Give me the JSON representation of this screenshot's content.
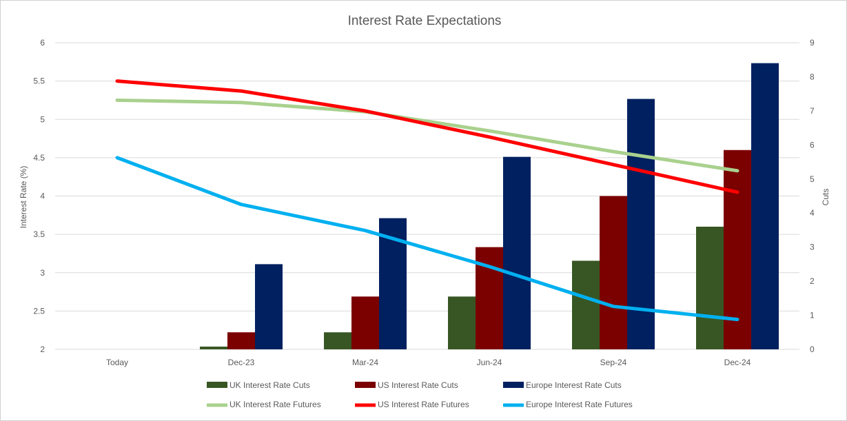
{
  "chart_data": {
    "type": "bar",
    "title": "Interest Rate Expectations",
    "categories": [
      "Today",
      "Dec-23",
      "Mar-24",
      "Jun-24",
      "Sep-24",
      "Dec-24"
    ],
    "y_left": {
      "label": "Interest Rate (%)",
      "range": [
        2,
        6
      ],
      "ticks": [
        "2",
        "2.5",
        "3",
        "3.5",
        "4",
        "4.5",
        "5",
        "5.5",
        "6"
      ]
    },
    "y_right": {
      "label": "Cuts",
      "range": [
        0,
        9
      ],
      "ticks": [
        "0",
        "1",
        "2",
        "3",
        "4",
        "5",
        "6",
        "7",
        "8",
        "9"
      ]
    },
    "grid": true,
    "legend_position": "bottom",
    "bar_series": [
      {
        "name": "UK Interest Rate Cuts",
        "color": "#375623",
        "axis": "right",
        "values": [
          0,
          0.08,
          0.5,
          1.55,
          2.6,
          3.6
        ]
      },
      {
        "name": "US Interest Rate Cuts",
        "color": "#7b0000",
        "axis": "right",
        "values": [
          0,
          0.5,
          1.55,
          3.0,
          4.5,
          5.85
        ]
      },
      {
        "name": "Europe Interest Rate Cuts",
        "color": "#002060",
        "axis": "right",
        "values": [
          0,
          2.5,
          3.85,
          5.65,
          7.35,
          8.4
        ]
      }
    ],
    "line_series": [
      {
        "name": "UK Interest Rate Futures",
        "color": "#a9d18e",
        "axis": "left",
        "values": [
          5.25,
          5.22,
          5.1,
          4.85,
          4.58,
          4.33
        ]
      },
      {
        "name": "US Interest Rate Futures",
        "color": "#ff0000",
        "axis": "left",
        "values": [
          5.5,
          5.37,
          5.11,
          4.77,
          4.41,
          4.05
        ]
      },
      {
        "name": "Europe Interest Rate Futures",
        "color": "#00b0f0",
        "axis": "left",
        "values": [
          4.5,
          3.89,
          3.55,
          3.08,
          2.56,
          2.39
        ]
      }
    ]
  }
}
